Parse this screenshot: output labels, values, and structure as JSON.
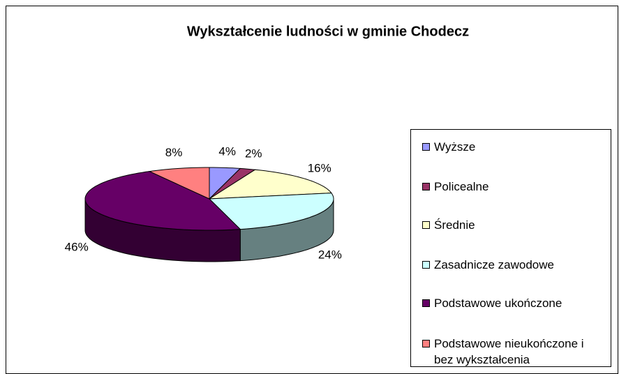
{
  "chart_data": {
    "type": "pie3d",
    "title": "Wykształcenie ludności w gminie Chodecz",
    "categories": [
      "Wyższe",
      "Policealne",
      "Średnie",
      "Zasadnicze zawodowe",
      "Podstawowe ukończone",
      "Podstawowe nieukończone i bez wykształcenia"
    ],
    "values": [
      4,
      2,
      16,
      24,
      46,
      8
    ],
    "value_labels": [
      "4%",
      "2%",
      "16%",
      "24%",
      "46%",
      "8%"
    ],
    "colors": [
      "#9999ff",
      "#993366",
      "#ffffcc",
      "#ccffff",
      "#660066",
      "#ff8080"
    ],
    "legend": "right"
  }
}
